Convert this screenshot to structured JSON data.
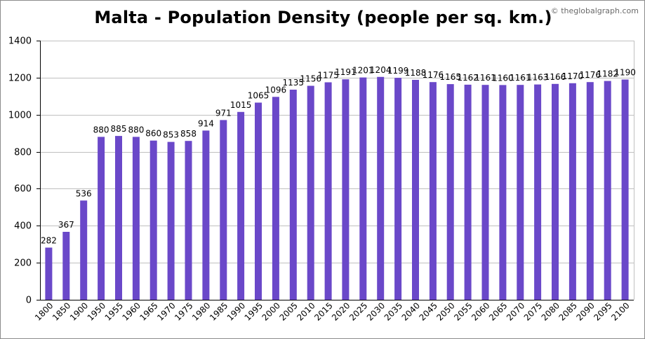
{
  "title": "Malta - Population Density (people per sq. km.)",
  "credit": "© theglobalgraph.com",
  "colors": {
    "bar": "#6a48c9",
    "grid": "#c0c0c0",
    "axis": "#000000"
  },
  "chart_data": {
    "type": "bar",
    "title": "Malta - Population Density (people per sq. km.)",
    "xlabel": "",
    "ylabel": "",
    "ylim": [
      0,
      1400
    ],
    "yticks": [
      0,
      200,
      400,
      600,
      800,
      1000,
      1200,
      1400
    ],
    "grid": true,
    "categories": [
      "1800",
      "1850",
      "1900",
      "1950",
      "1955",
      "1960",
      "1965",
      "1970",
      "1975",
      "1980",
      "1985",
      "1990",
      "1995",
      "2000",
      "2005",
      "2010",
      "2015",
      "2020",
      "2025",
      "2030",
      "2035",
      "2040",
      "2045",
      "2050",
      "2055",
      "2060",
      "2065",
      "2070",
      "2075",
      "2080",
      "2085",
      "2090",
      "2095",
      "2100"
    ],
    "values": [
      282,
      367,
      536,
      880,
      885,
      880,
      860,
      853,
      858,
      914,
      971,
      1015,
      1065,
      1096,
      1135,
      1156,
      1175,
      1191,
      1201,
      1204,
      1199,
      1188,
      1176,
      1165,
      1162,
      1161,
      1160,
      1161,
      1163,
      1166,
      1170,
      1176,
      1182,
      1190
    ]
  }
}
